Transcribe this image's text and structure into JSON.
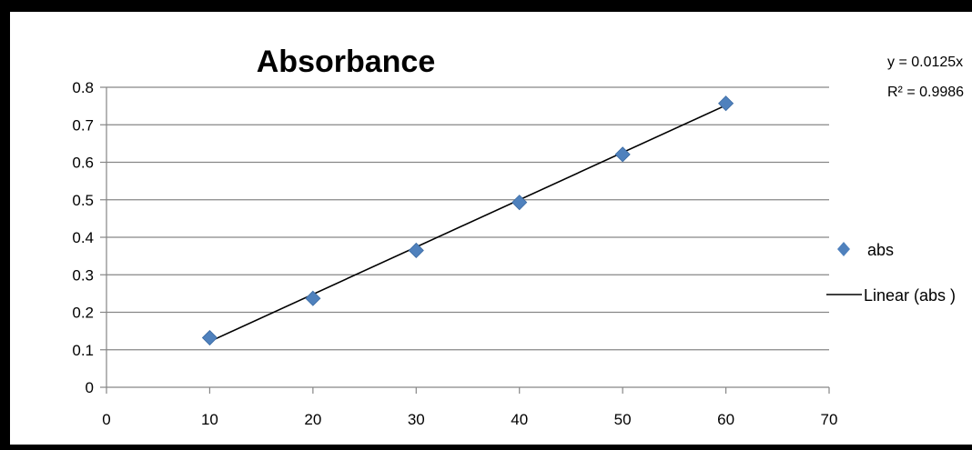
{
  "chart_data": {
    "type": "scatter",
    "title": "Absorbance",
    "xlabel": "",
    "ylabel": "",
    "xlim": [
      0,
      70
    ],
    "ylim": [
      0,
      0.8
    ],
    "x_ticks": [
      0,
      10,
      20,
      30,
      40,
      50,
      60,
      70
    ],
    "y_ticks": [
      0,
      0.1,
      0.2,
      0.3,
      0.4,
      0.5,
      0.6,
      0.7,
      0.8
    ],
    "grid": "horizontal",
    "legend_position": "right",
    "series": [
      {
        "name": "abs",
        "marker": "diamond",
        "color": "#4F81BD",
        "x": [
          10,
          20,
          30,
          40,
          50,
          60
        ],
        "y": [
          0.132,
          0.237,
          0.365,
          0.493,
          0.621,
          0.757
        ]
      }
    ],
    "trendline": {
      "name": "Linear (abs )",
      "type": "linear",
      "color": "#000000",
      "x": [
        10,
        60
      ],
      "y": [
        0.122,
        0.752
      ],
      "equation": "y = 0.0125x",
      "r_squared": "R² = 0.9986"
    }
  },
  "legend": {
    "series_label": "abs",
    "trend_label": "Linear (abs )"
  },
  "annotation": {
    "equation": "y = 0.0125x",
    "r_squared": "R² = 0.9986"
  },
  "colors": {
    "marker": "#4F81BD",
    "trendline": "#000000",
    "grid": "#868686",
    "frame": "#000000"
  }
}
